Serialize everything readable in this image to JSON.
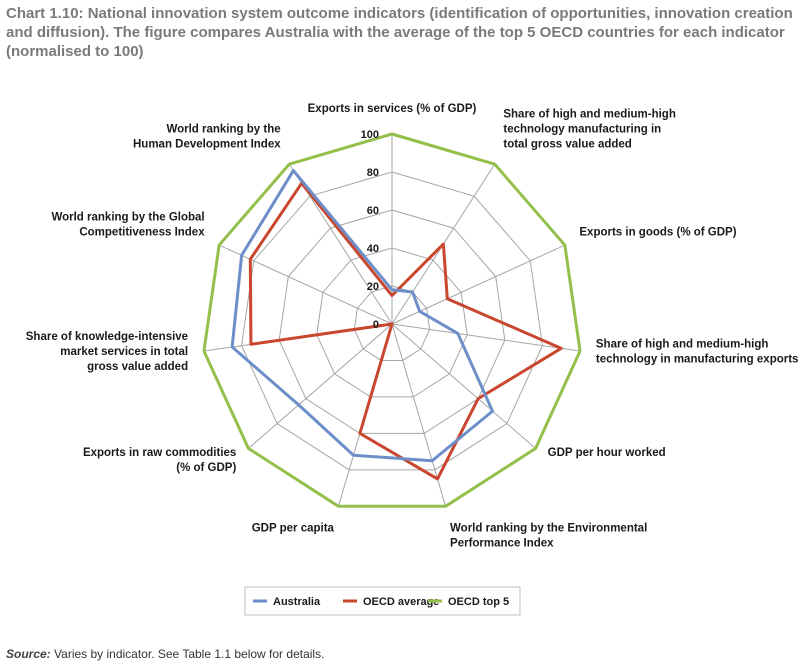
{
  "title": "Chart 1.10: National innovation system outcome indicators (identification of opportunities, innovation creation and diffusion). The figure compares Australia with the average of the top 5 OECD countries for each indicator (normalised to 100)",
  "source_label": "Source:",
  "source_text": "Varies by indicator. See Table 1.1 below for details.",
  "chart_data": {
    "type": "radar",
    "axes": [
      [
        "Exports in services (% of GDP)"
      ],
      [
        "Share of high and medium-high",
        "technology manufacturing in",
        "total gross value added"
      ],
      [
        "Exports in goods (% of GDP)"
      ],
      [
        "Share of high and medium-high",
        "technology in manufacturing exports"
      ],
      [
        "GDP per hour worked"
      ],
      [
        "World ranking by the Environmental",
        "Performance Index"
      ],
      [
        "GDP per capita"
      ],
      [
        "Exports in raw commodities",
        "(% of GDP)"
      ],
      [
        "Share of knowledge-intensive",
        "market services in total",
        "gross value added"
      ],
      [
        "World ranking by the Global",
        "Competitiveness Index"
      ],
      [
        "World ranking by the",
        "Human Development Index"
      ]
    ],
    "rlim": [
      0,
      100
    ],
    "ticks": [
      "0",
      "20",
      "40",
      "60",
      "80",
      "100"
    ],
    "series": [
      {
        "name": "Australia",
        "color": "#6d8fc9",
        "values": [
          18,
          20,
          16,
          35,
          70,
          75,
          72,
          65,
          85,
          87,
          96
        ]
      },
      {
        "name": "OECD average",
        "color": "#c9472f",
        "values": [
          15,
          50,
          32,
          90,
          60,
          85,
          60,
          0,
          75,
          82,
          88
        ]
      },
      {
        "name": "OECD top 5",
        "color": "#93bf4a",
        "values": [
          100,
          100,
          100,
          100,
          100,
          100,
          100,
          100,
          100,
          100,
          100
        ]
      }
    ],
    "grid": true,
    "legend_position": "bottom"
  }
}
